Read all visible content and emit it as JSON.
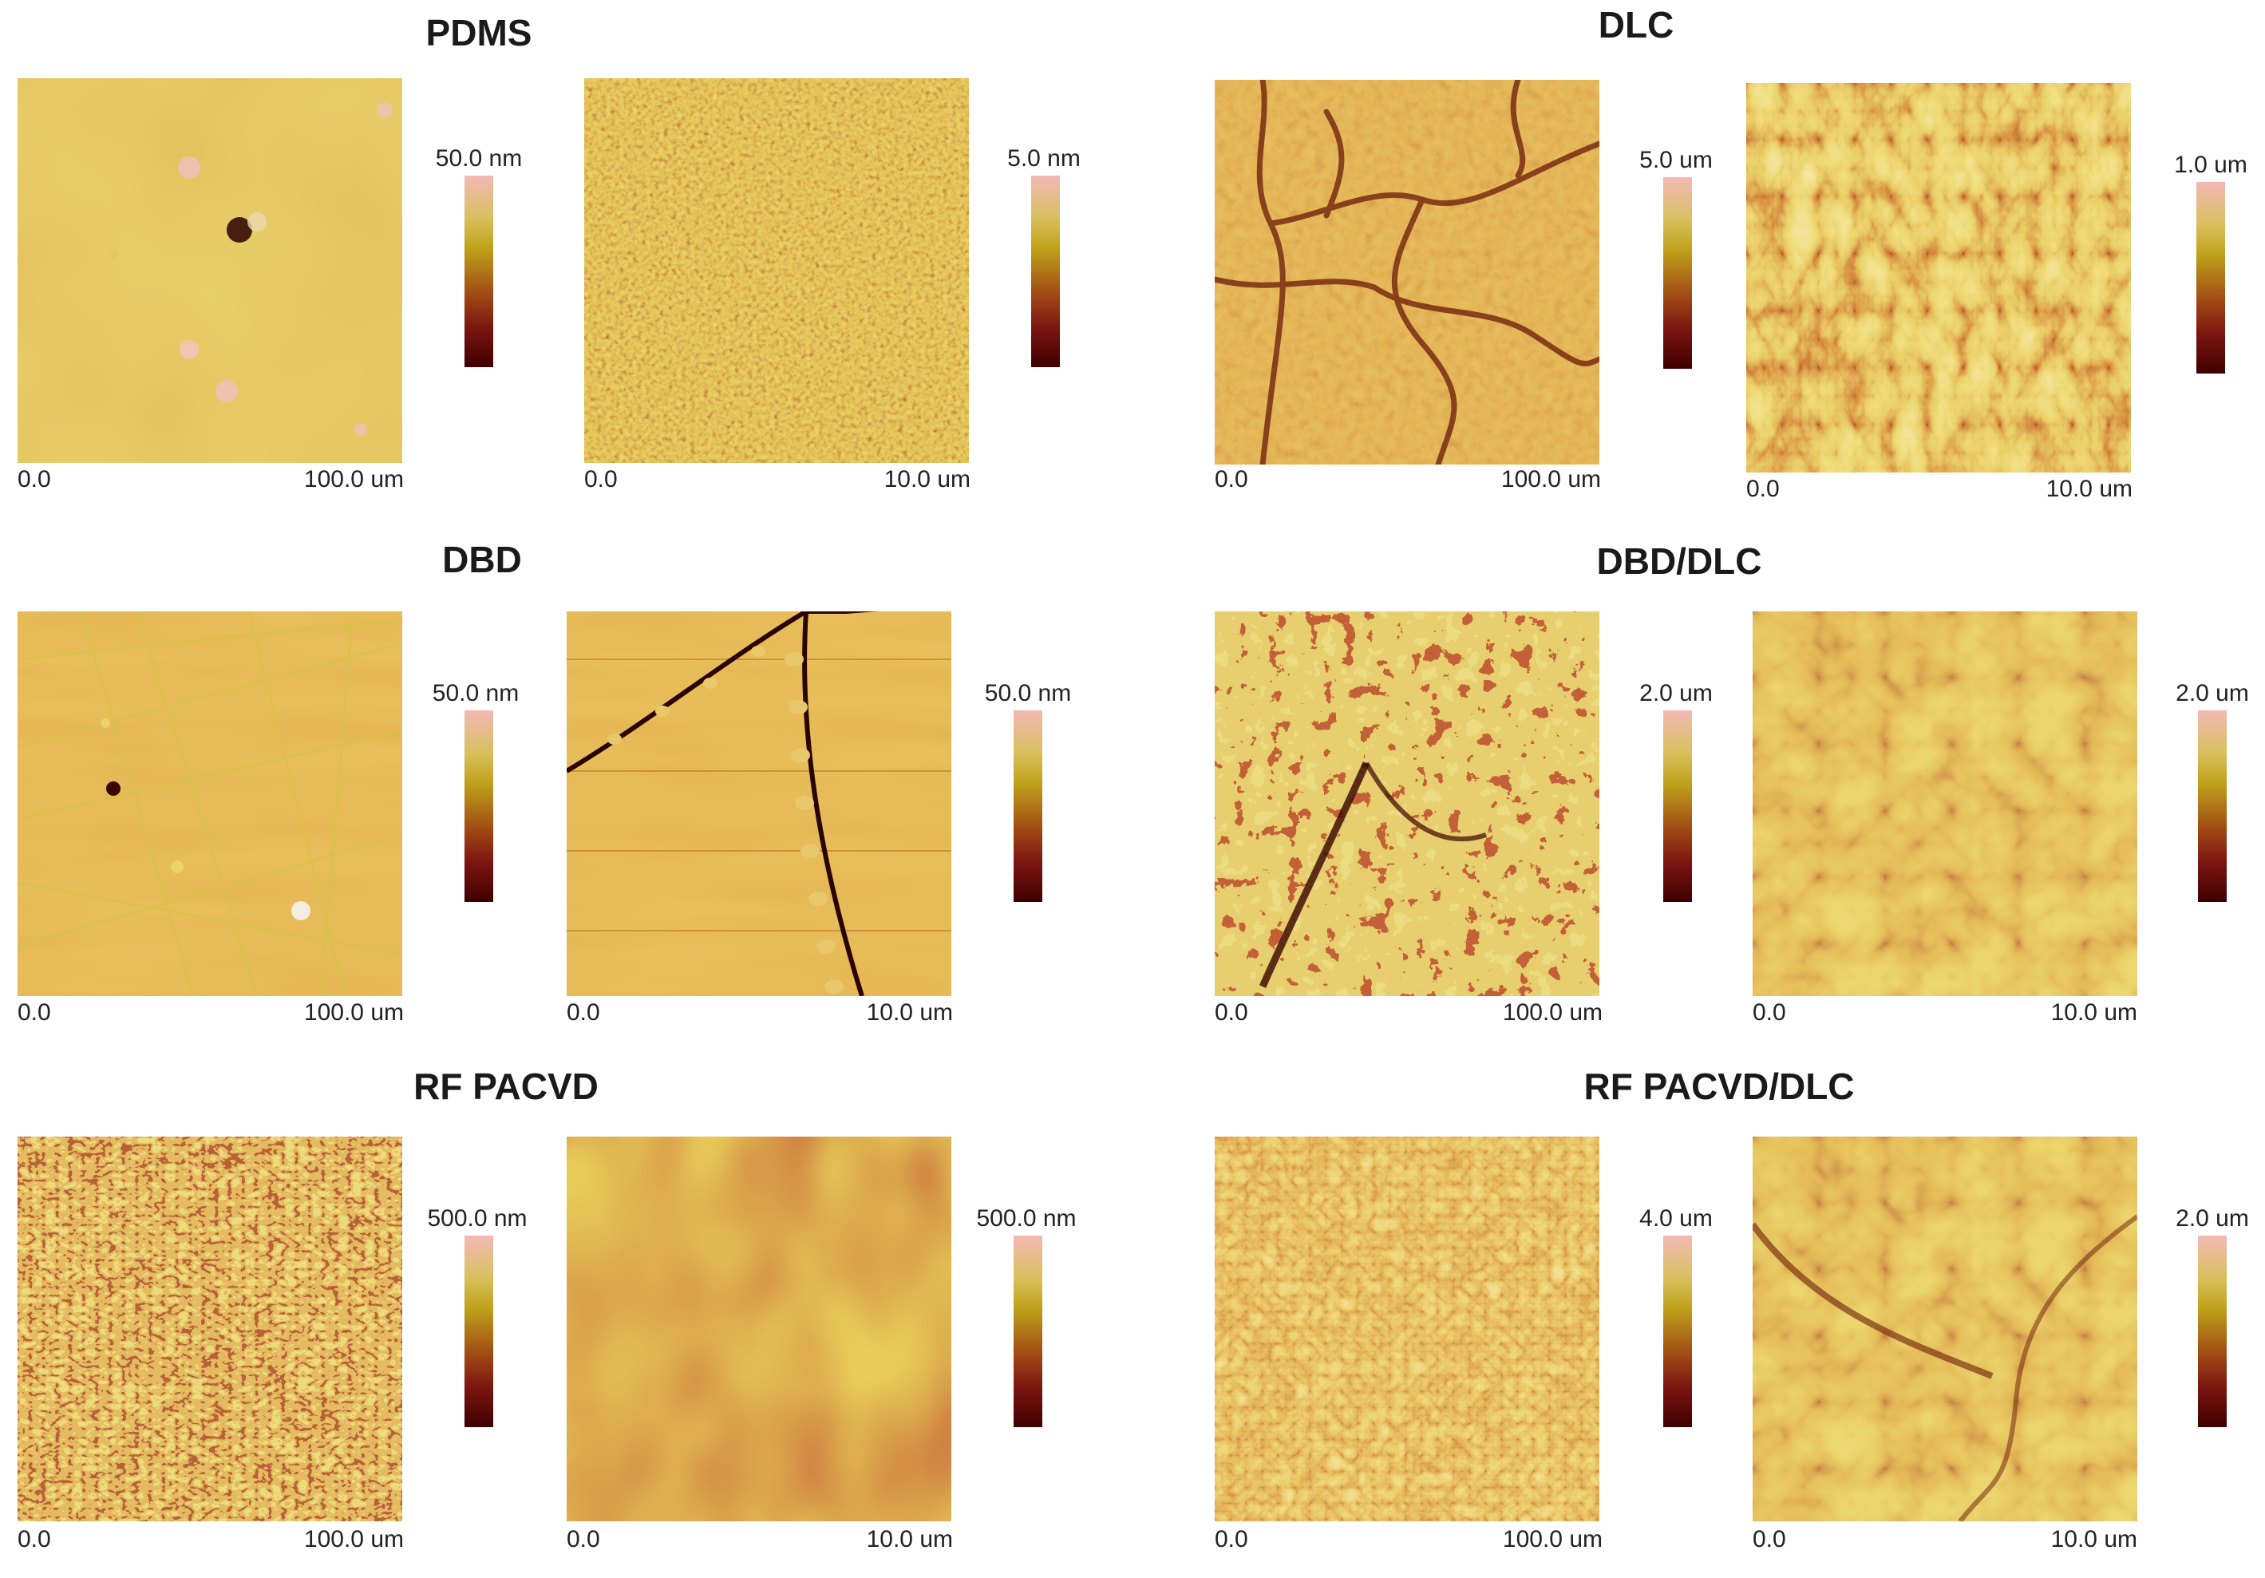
{
  "afm_colors": {
    "low": "#3e0000",
    "mid_low": "#9a3f10",
    "mid": "#c8841e",
    "mid_high": "#c9b43a",
    "high": "#f3b9b5"
  },
  "samples": [
    {
      "title": "PDMS",
      "panels": [
        {
          "texture": "smooth-blobs",
          "axis_start": "0.0",
          "axis_end": "100.0 um",
          "scale_max": "50.0 nm"
        },
        {
          "texture": "grainy-noise",
          "axis_start": "0.0",
          "axis_end": "10.0 um",
          "scale_max": "5.0 nm"
        }
      ]
    },
    {
      "title": "DLC",
      "panels": [
        {
          "texture": "cracked-grainy",
          "axis_start": "0.0",
          "axis_end": "100.0 um",
          "scale_max": "5.0 um"
        },
        {
          "texture": "wrinkled-ridges",
          "axis_start": "0.0",
          "axis_end": "10.0 um",
          "scale_max": "1.0 um"
        }
      ]
    },
    {
      "title": "DBD",
      "panels": [
        {
          "texture": "scratched-lines",
          "axis_start": "0.0",
          "axis_end": "100.0 um",
          "scale_max": "50.0 nm"
        },
        {
          "texture": "crack-with-beads",
          "axis_start": "0.0",
          "axis_end": "10.0 um",
          "scale_max": "50.0 nm"
        }
      ]
    },
    {
      "title": "DBD/DLC",
      "panels": [
        {
          "texture": "fractal-islands",
          "axis_start": "0.0",
          "axis_end": "100.0 um",
          "scale_max": "2.0 um"
        },
        {
          "texture": "smooth-folds",
          "axis_start": "0.0",
          "axis_end": "10.0 um",
          "scale_max": "2.0 um"
        }
      ]
    },
    {
      "title": "RF PACVD",
      "panels": [
        {
          "texture": "labyrinth-stripes",
          "axis_start": "0.0",
          "axis_end": "100.0 um",
          "scale_max": "500.0 nm"
        },
        {
          "texture": "large-waves",
          "axis_start": "0.0",
          "axis_end": "10.0 um",
          "scale_max": "500.0 nm"
        }
      ]
    },
    {
      "title": "RF PACVD/DLC",
      "panels": [
        {
          "texture": "fine-wrinkles",
          "axis_start": "0.0",
          "axis_end": "100.0 um",
          "scale_max": "4.0 um"
        },
        {
          "texture": "smooth-folds",
          "axis_start": "0.0",
          "axis_end": "10.0 um",
          "scale_max": "2.0 um"
        }
      ]
    }
  ]
}
